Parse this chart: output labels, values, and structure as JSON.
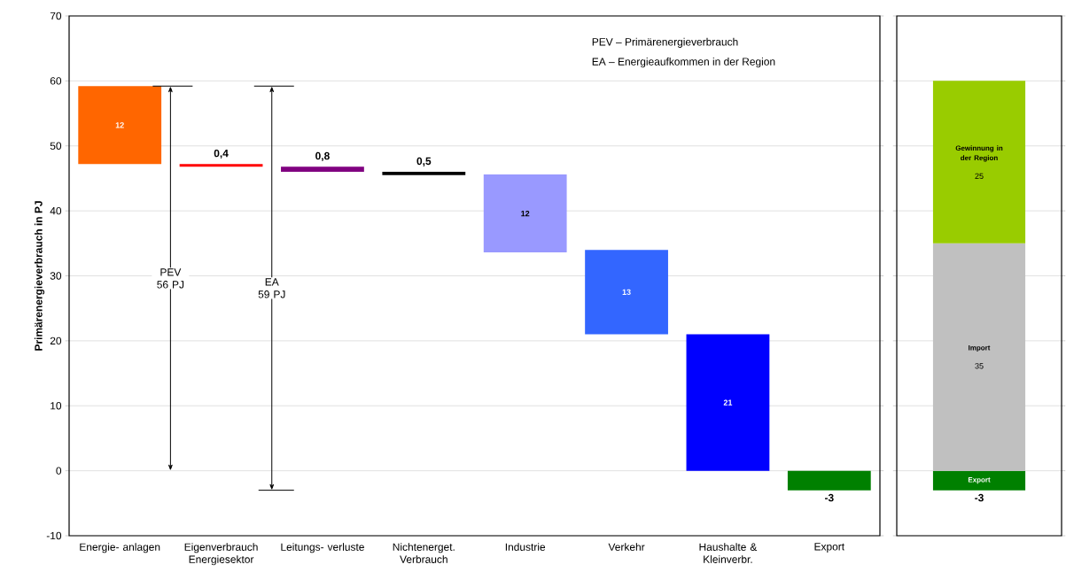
{
  "chart_data": [
    {
      "type": "bar",
      "ylabel": "Primärenergieverbrauch in PJ",
      "categories": [
        "Energie- anlagen",
        "Eigenverbrauch Energiesektor",
        "Leitungs- verluste",
        "Nichtenerget. Verbrauch",
        "Industrie",
        "Verkehr",
        "Haushalte & Kleinverbr.",
        "Export"
      ],
      "values": [
        12,
        0.4,
        0.8,
        0.5,
        12,
        13,
        21,
        -3
      ],
      "base": [
        47.2,
        46.8,
        46.0,
        45.5,
        33.6,
        21,
        0,
        0
      ],
      "colors": [
        "#ff6600",
        "#ff0000",
        "#800080",
        "#000000",
        "#9999ff",
        "#3366ff",
        "#0000ff",
        "#008000"
      ],
      "value_labels": [
        "12",
        "0,4",
        "0,8",
        "0,5",
        "12",
        "13",
        "21",
        "-3"
      ],
      "ylim": [
        -10,
        70
      ],
      "yticks": [
        -10,
        0,
        10,
        20,
        30,
        40,
        50,
        60,
        70
      ],
      "grid": "y",
      "annotations": [
        "PEV – Primärenergieverbrauch",
        "EA – Energieaufkommen in der Region",
        "PEV 56 PJ",
        "EA 59 PJ"
      ]
    },
    {
      "type": "bar",
      "stacked": true,
      "categories": [
        null
      ],
      "series": [
        {
          "name": "Export",
          "color": "#008000",
          "values": [
            -3
          ]
        },
        {
          "name": "Import",
          "color": "#c0c0c0",
          "values": [
            35
          ]
        },
        {
          "name": "Gewinnung in der Region",
          "color": "#99cc00",
          "values": [
            25
          ]
        }
      ],
      "data_labels": true,
      "ylim": [
        -10,
        70
      ],
      "yticks": [
        -10,
        0,
        10,
        20,
        30,
        40,
        50,
        60,
        70
      ],
      "grid": "y",
      "tick_labels": false
    }
  ]
}
